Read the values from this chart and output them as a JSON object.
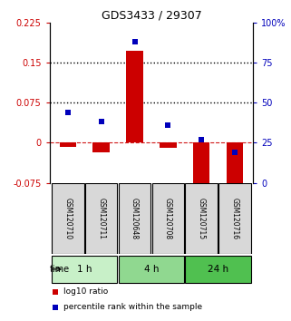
{
  "title": "GDS3433 / 29307",
  "samples": [
    "GSM120710",
    "GSM120711",
    "GSM120648",
    "GSM120708",
    "GSM120715",
    "GSM120716"
  ],
  "groups": [
    {
      "label": "1 h",
      "indices": [
        0,
        1
      ],
      "color": "#c8f0c8"
    },
    {
      "label": "4 h",
      "indices": [
        2,
        3
      ],
      "color": "#90d890"
    },
    {
      "label": "24 h",
      "indices": [
        4,
        5
      ],
      "color": "#50c050"
    }
  ],
  "log10_ratio": [
    -0.008,
    -0.018,
    0.172,
    -0.01,
    -0.092,
    -0.09
  ],
  "percentile_rank": [
    44,
    38,
    88,
    36,
    27,
    19
  ],
  "ylim_left": [
    -0.075,
    0.225
  ],
  "ylim_right": [
    0,
    100
  ],
  "yticks_left": [
    -0.075,
    0,
    0.075,
    0.15,
    0.225
  ],
  "yticks_right": [
    0,
    25,
    50,
    75,
    100
  ],
  "ytick_labels_left": [
    "-0.075",
    "0",
    "0.075",
    "0.15",
    "0.225"
  ],
  "ytick_labels_right": [
    "0",
    "25",
    "50",
    "75",
    "100%"
  ],
  "hlines": [
    0.075,
    0.15
  ],
  "red_color": "#cc0000",
  "blue_color": "#0000bb",
  "bar_width": 0.5,
  "marker_size": 5,
  "legend_items": [
    {
      "label": "log10 ratio",
      "color": "#cc0000"
    },
    {
      "label": "percentile rank within the sample",
      "color": "#0000bb"
    }
  ],
  "time_label": "time",
  "group_box_color": "#cccccc",
  "group_box_edge": "#000000",
  "sample_box_color": "#d8d8d8"
}
